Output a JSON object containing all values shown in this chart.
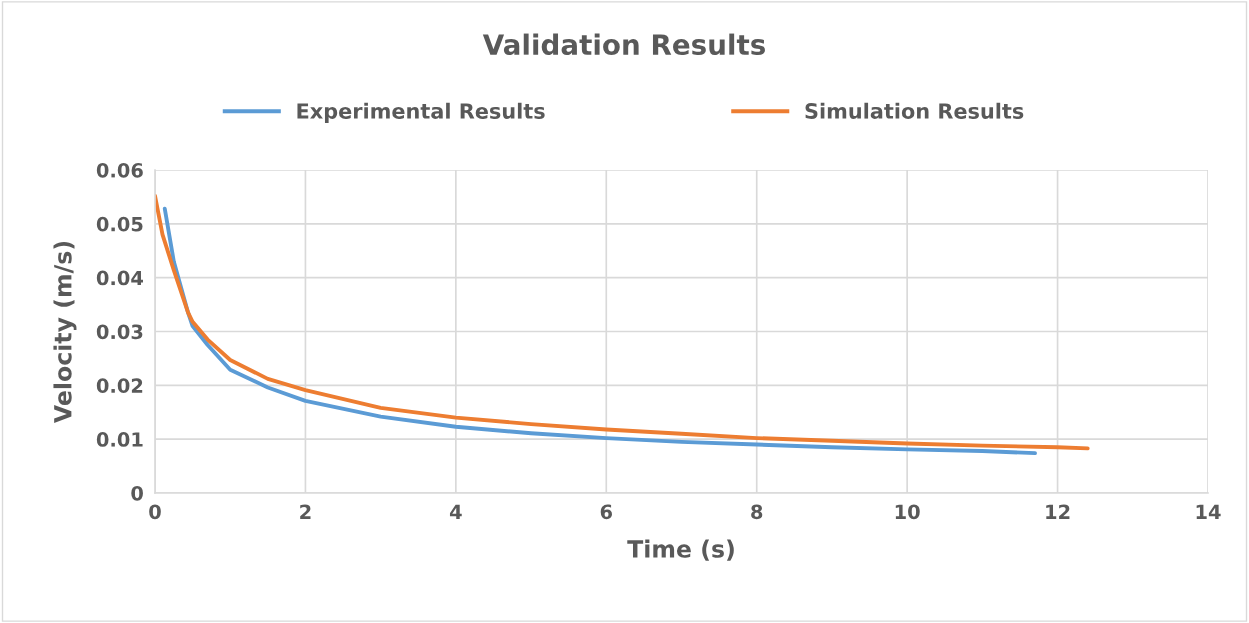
{
  "chart_data": {
    "type": "line",
    "title": "Validation Results",
    "xlabel": "Time (s)",
    "ylabel": "Velocity (m/s)",
    "series": [
      {
        "name": "Experimental Results",
        "color": "#5b9bd5",
        "x": [
          0.13,
          0.25,
          0.44,
          0.5,
          0.7,
          1,
          1.5,
          2,
          3,
          4,
          5,
          6,
          7,
          8,
          9,
          10,
          11,
          11.7
        ],
        "values": [
          0.0528,
          0.043,
          0.0335,
          0.031,
          0.0275,
          0.0229,
          0.0196,
          0.0171,
          0.0142,
          0.0123,
          0.0111,
          0.0102,
          0.0095,
          0.009,
          0.0085,
          0.0081,
          0.0078,
          0.0074
        ]
      },
      {
        "name": "Simulation Results",
        "color": "#ed7d31",
        "x": [
          0,
          0.1,
          0.25,
          0.44,
          0.5,
          0.7,
          1,
          1.5,
          2,
          3,
          4,
          5,
          6,
          7,
          8,
          9,
          10,
          11,
          12,
          12.4
        ],
        "values": [
          0.0552,
          0.048,
          0.0414,
          0.0335,
          0.0318,
          0.0285,
          0.0247,
          0.0212,
          0.0191,
          0.0158,
          0.014,
          0.0128,
          0.0118,
          0.011,
          0.0102,
          0.0097,
          0.0092,
          0.0088,
          0.0085,
          0.0083
        ]
      }
    ],
    "xlim": [
      0,
      14
    ],
    "xticks": [
      0,
      2,
      4,
      6,
      8,
      10,
      12,
      14
    ],
    "ylim": [
      0,
      0.06
    ],
    "yticks": [
      0,
      0.01,
      0.02,
      0.03,
      0.04,
      0.05,
      0.06
    ],
    "grid": true,
    "legend": "top",
    "marker": "none",
    "line_style": "solid"
  }
}
